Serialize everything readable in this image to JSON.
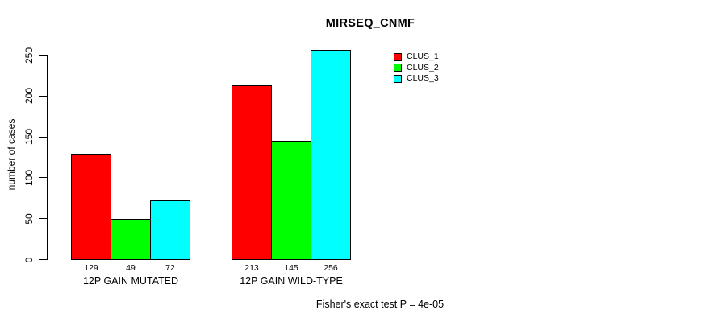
{
  "page": {
    "background": "#ffffff"
  },
  "chart_data": {
    "type": "bar",
    "title": "MIRSEQ_CNMF",
    "ylabel": "number of cases",
    "xlabel": "",
    "footer": "Fisher's exact test P = 4e-05",
    "categories": [
      "12P GAIN MUTATED",
      "12P GAIN WILD-TYPE"
    ],
    "series": [
      {
        "name": "CLUS_1",
        "color": "#ff0000",
        "values": [
          129,
          213
        ]
      },
      {
        "name": "CLUS_2",
        "color": "#00ff00",
        "values": [
          49,
          145
        ]
      },
      {
        "name": "CLUS_3",
        "color": "#00ffff",
        "values": [
          72,
          256
        ]
      }
    ],
    "bar_value_labels": [
      [
        129,
        49,
        72
      ],
      [
        213,
        145,
        256
      ]
    ],
    "yticks": [
      0,
      50,
      100,
      150,
      200,
      250
    ],
    "ylim": [
      0,
      250
    ],
    "grid": false,
    "legend_position": "right",
    "bar_border_color": "#000000",
    "axis_color": "#000000"
  }
}
